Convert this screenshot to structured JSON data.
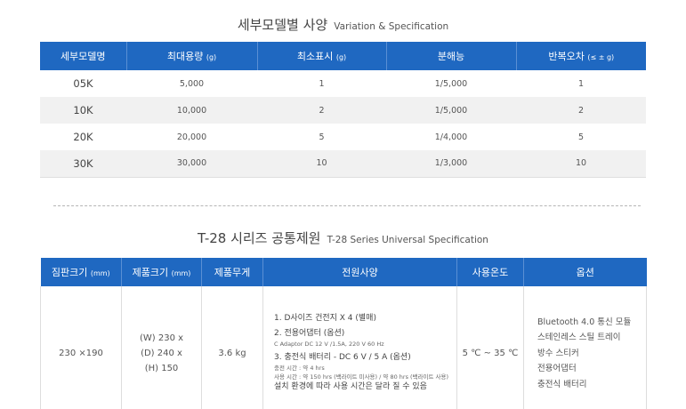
{
  "section1": {
    "title_main": "세부모델별 사양",
    "title_sub": "Variation & Specification",
    "headers": [
      {
        "label": "세부모델명",
        "unit": ""
      },
      {
        "label": "최대용량",
        "unit": "(g)"
      },
      {
        "label": "최소표시",
        "unit": "(g)"
      },
      {
        "label": "분해능",
        "unit": ""
      },
      {
        "label": "반복오차",
        "unit": "(≤ ± g)"
      }
    ],
    "rows": [
      [
        "05K",
        "5,000",
        "1",
        "1/5,000",
        "1"
      ],
      [
        "10K",
        "10,000",
        "2",
        "1/5,000",
        "2"
      ],
      [
        "20K",
        "20,000",
        "5",
        "1/4,000",
        "5"
      ],
      [
        "30K",
        "30,000",
        "10",
        "1/3,000",
        "10"
      ]
    ]
  },
  "section2": {
    "title_main": "T-28 시리즈 공통제원",
    "title_sub": "T-28 Series Universal Specification",
    "headers": [
      {
        "label": "짐판크기",
        "unit": "(mm)"
      },
      {
        "label": "제품크기",
        "unit": "(mm)"
      },
      {
        "label": "제품무게",
        "unit": ""
      },
      {
        "label": "전원사양",
        "unit": ""
      },
      {
        "label": "사용온도",
        "unit": ""
      },
      {
        "label": "옵션",
        "unit": ""
      }
    ],
    "plate_size": "230 ×190",
    "product_size": [
      "(W) 230 x",
      "(D) 240 x",
      "(H) 150"
    ],
    "weight": "3.6 kg",
    "power": {
      "item1": "1. D사이즈 건전지 X 4 (별매)",
      "item2": "2. 전용어댑터 (옵션)",
      "item2_detail": "C Adaptor DC 12 V /1.5A, 220 V 60 Hz",
      "item3": "3. 충전식 배터리 - DC 6 V / 5 A (옵션)",
      "item3_detail1": "충전 시간 : 약 4 hrs",
      "item3_detail2": "사용 시간 : 약 150 hrs (백라이트 미사용) / 약 80 hrs (백라이트 사용)",
      "note": "설치 환경에 따라 사용 시간은 달라 질 수 있음"
    },
    "temperature": "5 ℃ ~ 35 ℃",
    "options": [
      "Bluetooth 4.0 통신 모듈",
      "스테인레스 스틸 트레이",
      "방수 스티커",
      "전용어댑터",
      "충전식 배터리"
    ]
  }
}
